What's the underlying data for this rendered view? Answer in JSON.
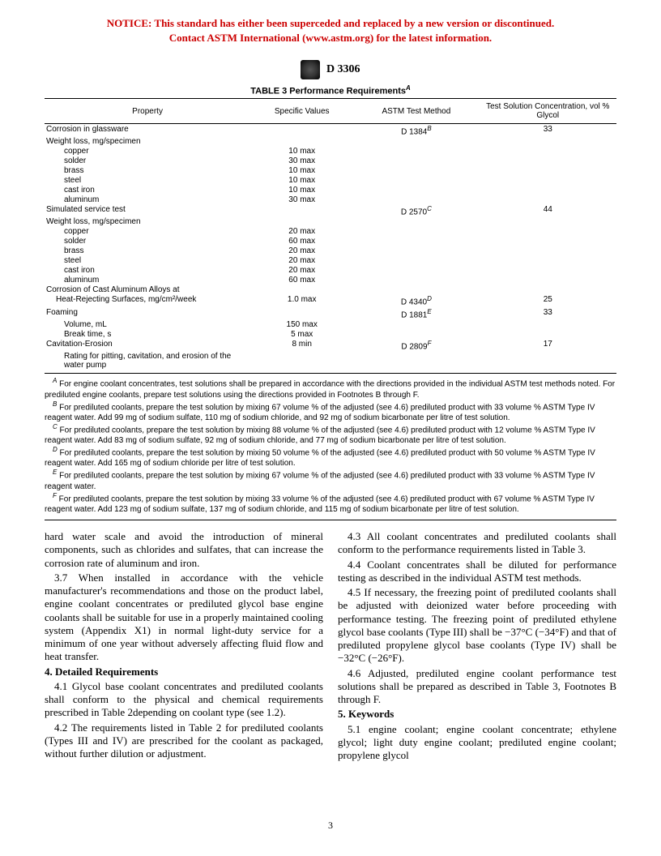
{
  "notice": {
    "line1": "NOTICE: This standard has either been superceded and replaced by a new version or discontinued.",
    "line2": "Contact ASTM International (www.astm.org) for the latest information."
  },
  "header": {
    "designation": "D 3306"
  },
  "table": {
    "title": "TABLE 3  Performance Requirements",
    "title_sup": "A",
    "headers": {
      "property": "Property",
      "specific": "Specific Values",
      "method": "ASTM Test Method",
      "conc": "Test Solution Concentration, vol % Glycol"
    },
    "rows": [
      {
        "prop": "Corrosion in glassware",
        "val": "",
        "method": "D 1384",
        "msup": "B",
        "conc": "33"
      },
      {
        "prop": "Weight loss, mg/specimen",
        "val": "",
        "method": "",
        "conc": ""
      },
      {
        "prop": "copper",
        "indent": 2,
        "val": "10 max",
        "method": "",
        "conc": ""
      },
      {
        "prop": "solder",
        "indent": 2,
        "val": "30 max",
        "method": "",
        "conc": ""
      },
      {
        "prop": "brass",
        "indent": 2,
        "val": "10 max",
        "method": "",
        "conc": ""
      },
      {
        "prop": "steel",
        "indent": 2,
        "val": "10 max",
        "method": "",
        "conc": ""
      },
      {
        "prop": "cast iron",
        "indent": 2,
        "val": "10 max",
        "method": "",
        "conc": ""
      },
      {
        "prop": "aluminum",
        "indent": 2,
        "val": "30 max",
        "method": "",
        "conc": ""
      },
      {
        "prop": "Simulated service test",
        "val": "",
        "method": "D 2570",
        "msup": "C",
        "conc": "44"
      },
      {
        "prop": "Weight loss, mg/specimen",
        "val": "",
        "method": "",
        "conc": ""
      },
      {
        "prop": "copper",
        "indent": 2,
        "val": "20 max",
        "method": "",
        "conc": ""
      },
      {
        "prop": "solder",
        "indent": 2,
        "val": "60 max",
        "method": "",
        "conc": ""
      },
      {
        "prop": "brass",
        "indent": 2,
        "val": "20 max",
        "method": "",
        "conc": ""
      },
      {
        "prop": "steel",
        "indent": 2,
        "val": "20 max",
        "method": "",
        "conc": ""
      },
      {
        "prop": "cast iron",
        "indent": 2,
        "val": "20 max",
        "method": "",
        "conc": ""
      },
      {
        "prop": "aluminum",
        "indent": 2,
        "val": "60 max",
        "method": "",
        "conc": ""
      },
      {
        "prop": "Corrosion of Cast Aluminum Alloys at",
        "val": "",
        "method": "",
        "conc": ""
      },
      {
        "prop": "Heat-Rejecting Surfaces, mg/cm²/week",
        "indent": 1,
        "val": "1.0 max",
        "method": "D 4340",
        "msup": "D",
        "conc": "25"
      },
      {
        "prop": "Foaming",
        "val": "",
        "method": "D 1881",
        "msup": "E",
        "conc": "33"
      },
      {
        "prop": "Volume, mL",
        "indent": 2,
        "val": "150 max",
        "method": "",
        "conc": ""
      },
      {
        "prop": "Break time, s",
        "indent": 2,
        "val": "5 max",
        "method": "",
        "conc": ""
      },
      {
        "prop": "Cavitation-Erosion",
        "val": "8 min",
        "method": "D 2809",
        "msup": "F",
        "conc": "17"
      },
      {
        "prop": "Rating for pitting, cavitation, and erosion of the water pump",
        "indent": 2,
        "val": "",
        "method": "",
        "conc": ""
      }
    ]
  },
  "footnotes": {
    "A": " For engine coolant concentrates, test solutions shall be prepared in accordance with the directions provided in the individual ASTM test methods noted. For prediluted engine coolants, prepare test solutions using the directions provided in Footnotes B through F.",
    "B": " For prediluted coolants, prepare the test solution by mixing 67 volume % of the adjusted (see 4.6) prediluted product with 33 volume % ASTM Type IV reagent water. Add 99 mg of sodium sulfate, 110 mg of sodium chloride, and 92 mg of sodium bicarbonate per litre of test solution.",
    "C": " For prediluted coolants, prepare the test solution by mixing 88 volume % of the adjusted (see 4.6) prediluted product with 12 volume % ASTM Type IV reagent water. Add 83 mg of sodium sulfate, 92 mg of sodium chloride, and 77 mg of sodium bicarbonate per litre of test solution.",
    "D": " For prediluted coolants, prepare the test solution by mixing 50 volume % of the adjusted (see 4.6) prediluted product with 50 volume % ASTM Type IV reagent water. Add 165 mg of sodium chloride per litre of test solution.",
    "E": " For prediluted coolants, prepare the test solution by mixing 67 volume % of the adjusted (see 4.6) prediluted product with 33 volume % ASTM Type IV reagent water.",
    "F": " For prediluted coolants, prepare the test solution by mixing 33 volume % of the adjusted (see 4.6) prediluted product with 67 volume % ASTM Type IV reagent water. Add 123 mg of sodium sulfate, 137 mg of sodium chloride, and 115 mg of sodium bicarbonate per litre of test solution."
  },
  "body": {
    "p0": "hard water scale and avoid the introduction of mineral components, such as chlorides and sulfates, that can increase the corrosion rate of aluminum and iron.",
    "p37": "3.7 When installed in accordance with the vehicle manufacturer's recommendations and those on the product label, engine coolant concentrates or prediluted glycol base engine coolants shall be suitable for use in a properly maintained cooling system (Appendix X1) in normal light-duty service for a minimum of one year without adversely affecting fluid flow and heat transfer.",
    "h4": "4. Detailed Requirements",
    "p41": "4.1 Glycol base coolant concentrates and prediluted coolants shall conform to the physical and chemical requirements prescribed in Table 2depending on coolant type (see 1.2).",
    "p42": "4.2 The requirements listed in Table 2 for prediluted coolants (Types III and IV) are prescribed for the coolant as packaged, without further dilution or adjustment.",
    "p43": "4.3 All coolant concentrates and prediluted coolants shall conform to the performance requirements listed in Table 3.",
    "p44": "4.4 Coolant concentrates shall be diluted for performance testing as described in the individual ASTM test methods.",
    "p45": "4.5 If necessary, the freezing point of prediluted coolants shall be adjusted with deionized water before proceeding with performance testing. The freezing point of prediluted ethylene glycol base coolants (Type III) shall be −37°C (−34°F) and that of prediluted propylene glycol base coolants (Type IV) shall be −32°C (−26°F).",
    "p46": "4.6 Adjusted, prediluted engine coolant performance test solutions shall be prepared as described in Table 3, Footnotes B through F.",
    "h5": "5. Keywords",
    "p51": "5.1 engine coolant; engine coolant concentrate; ethylene glycol; light duty engine coolant; prediluted engine coolant; propylene glycol"
  },
  "pagenum": "3"
}
